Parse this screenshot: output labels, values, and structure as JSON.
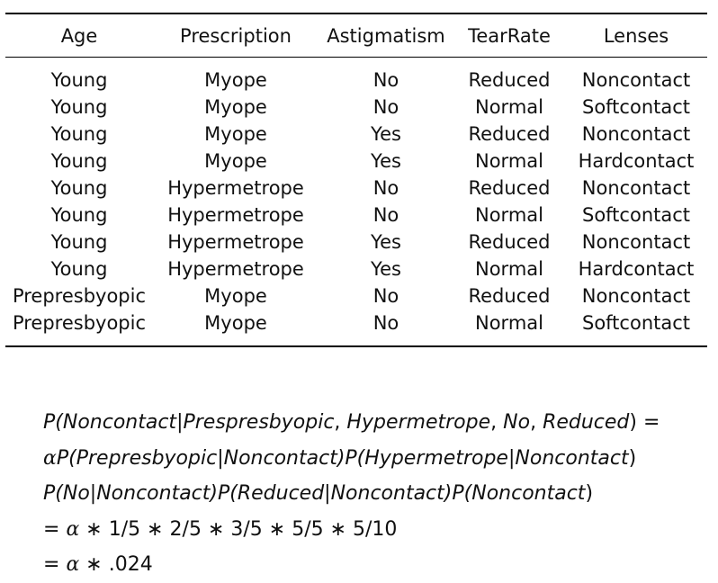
{
  "table": {
    "headers": [
      "Age",
      "Prescription",
      "Astigmatism",
      "TearRate",
      "Lenses"
    ],
    "rows": [
      [
        "Young",
        "Myope",
        "No",
        "Reduced",
        "Noncontact"
      ],
      [
        "Young",
        "Myope",
        "No",
        "Normal",
        "Softcontact"
      ],
      [
        "Young",
        "Myope",
        "Yes",
        "Reduced",
        "Noncontact"
      ],
      [
        "Young",
        "Myope",
        "Yes",
        "Normal",
        "Hardcontact"
      ],
      [
        "Young",
        "Hypermetrope",
        "No",
        "Reduced",
        "Noncontact"
      ],
      [
        "Young",
        "Hypermetrope",
        "No",
        "Normal",
        "Softcontact"
      ],
      [
        "Young",
        "Hypermetrope",
        "Yes",
        "Reduced",
        "Noncontact"
      ],
      [
        "Young",
        "Hypermetrope",
        "Yes",
        "Normal",
        "Hardcontact"
      ],
      [
        "Prepresbyopic",
        "Myope",
        "No",
        "Reduced",
        "Noncontact"
      ],
      [
        "Prepresbyopic",
        "Myope",
        "No",
        "Normal",
        "Softcontact"
      ]
    ]
  },
  "formula": {
    "line1": {
      "p": "P(",
      "t1": "Noncontact",
      "bar": "|",
      "t2": "Prespresbyopic",
      "c1": ", ",
      "t3": "Hypermetrope",
      "c2": ", ",
      "t4": "No",
      "c3": ", ",
      "t5": "Reduced",
      "end": ") ="
    },
    "line2": {
      "alpha": "α",
      "p1": "P(",
      "a1": "Prepresbyopic",
      "b1": "|",
      "a2": "Noncontact",
      "p2": ")P(",
      "a3": "Hypermetrope",
      "b2": "|",
      "a4": "Noncontact",
      "end": ")"
    },
    "line3": {
      "p1": "P(",
      "a1": "No",
      "b1": "|",
      "a2": "Noncontact",
      "p2": ")P(",
      "a3": "Reduced",
      "b2": "|",
      "a4": "Noncontact",
      "p3": ")P(",
      "a5": "Noncontact",
      "end": ")"
    },
    "line4": {
      "eq": "= ",
      "alpha": "α",
      "rest": " ∗ 1/5 ∗ 2/5 ∗ 3/5 ∗ 5/5 ∗ 5/10"
    },
    "line5": {
      "eq": "= ",
      "alpha": "α",
      "rest": " ∗ .024"
    }
  }
}
